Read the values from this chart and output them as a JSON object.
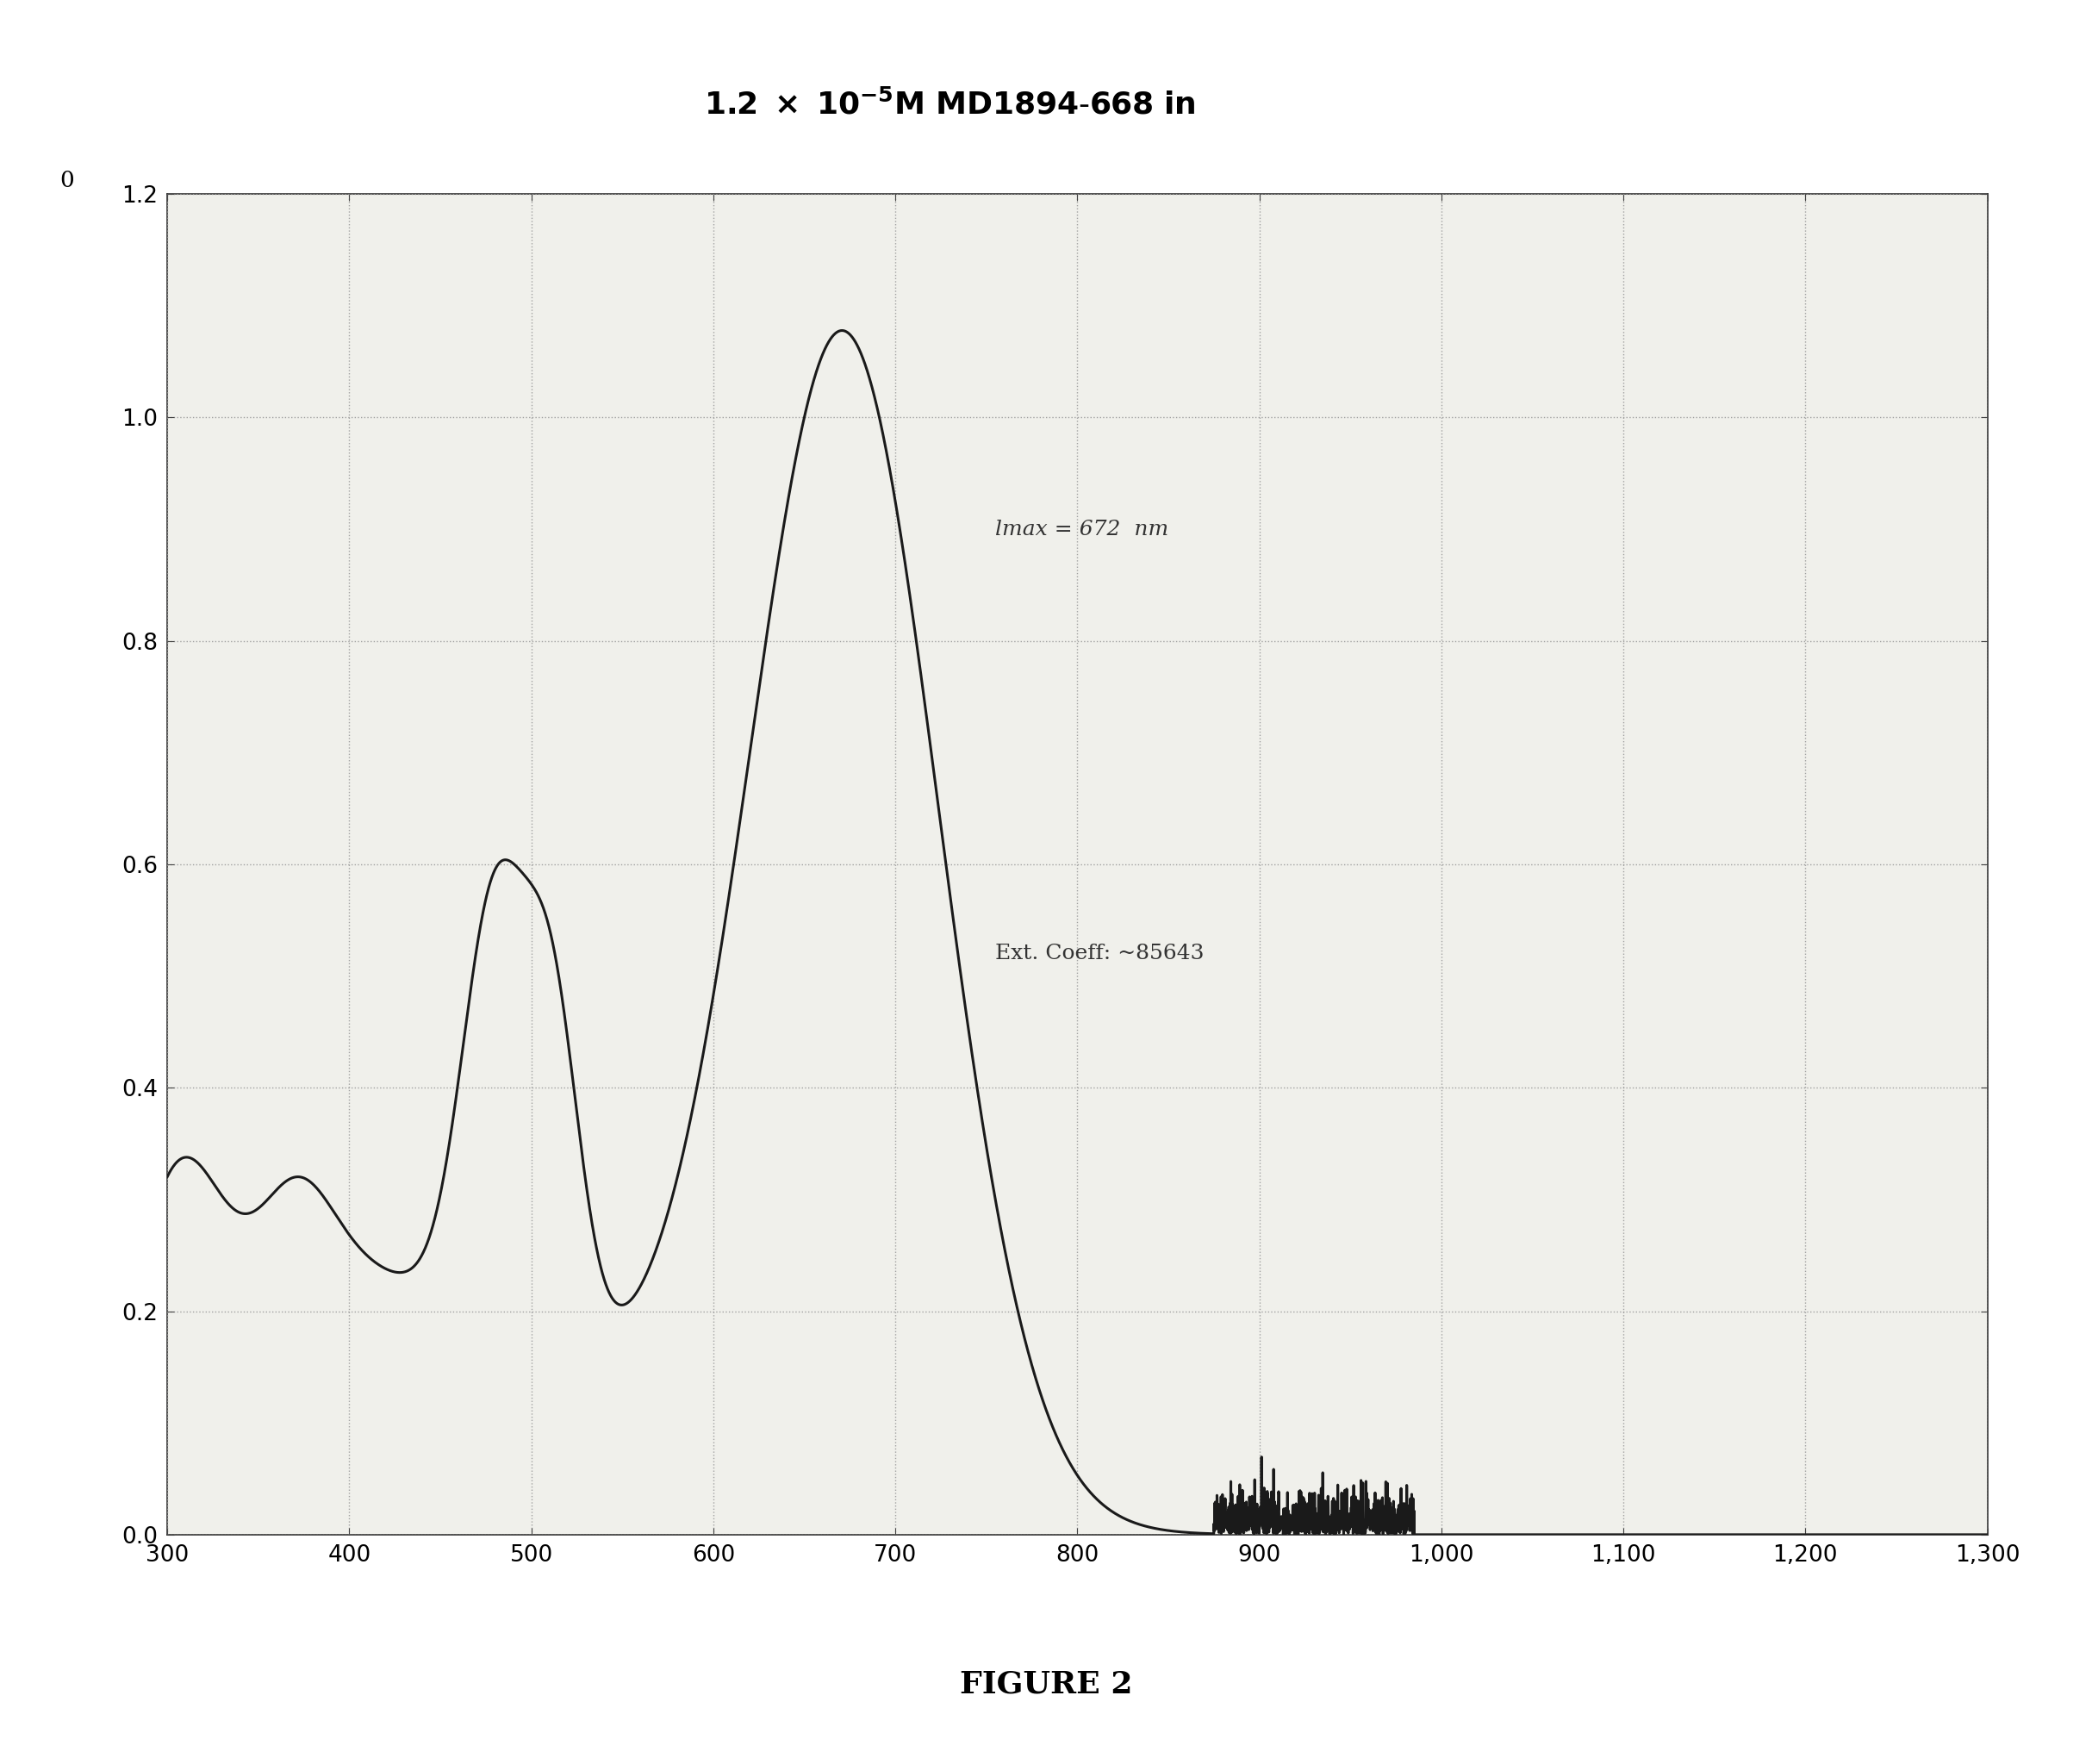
{
  "annotation1": "lmax = 672  nm",
  "annotation2": "Ext. Coeff: ~85643",
  "figure_label": "FIGURE 2",
  "xmin": 300,
  "xmax": 1300,
  "ymin": 0.0,
  "ymax": 1.2,
  "xticks": [
    300,
    400,
    500,
    600,
    700,
    800,
    900,
    1000,
    1100,
    1200,
    1300
  ],
  "yticks": [
    0.0,
    0.2,
    0.4,
    0.6,
    0.8,
    1.0,
    1.2
  ],
  "line_color": "#1a1a1a",
  "background_color": "#f0f0eb",
  "grid_color": "#999999",
  "title_fontsize": 26,
  "annotation_fontsize": 18,
  "tick_fontsize": 19,
  "figure_label_fontsize": 26
}
